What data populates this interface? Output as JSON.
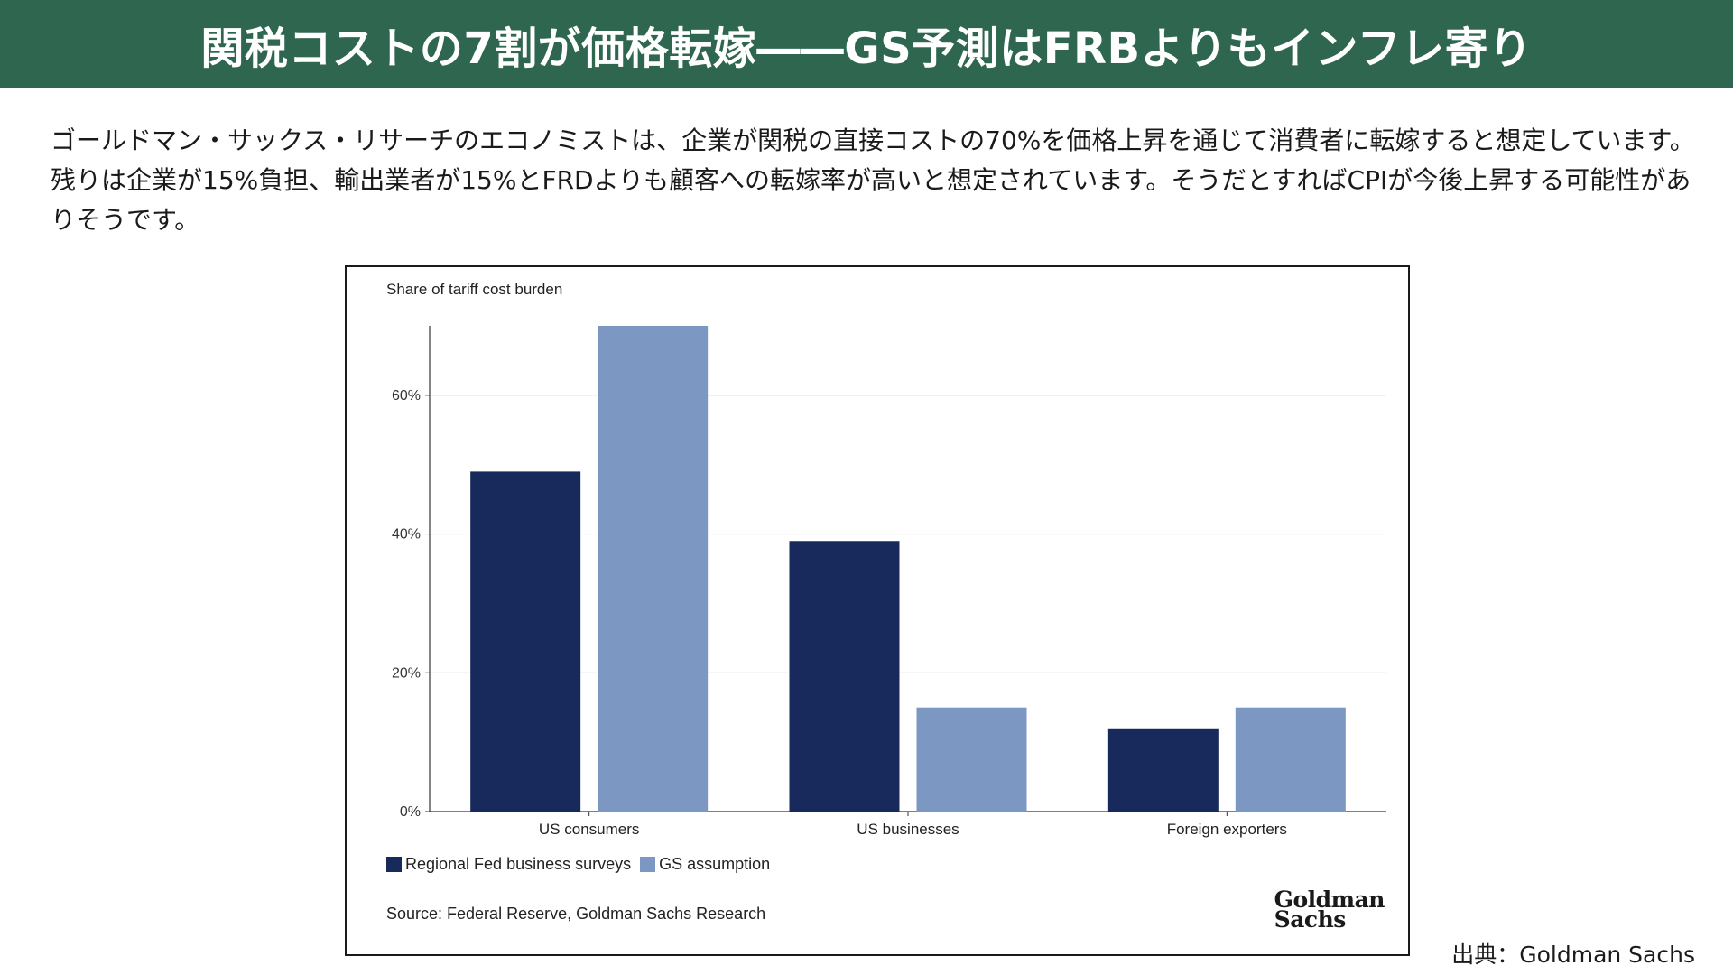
{
  "header": {
    "title": "関税コストの7割が価格転嫁――GS予測はFRBよりもインフレ寄り"
  },
  "body_text": "ゴールドマン・サックス・リサーチのエコノミストは、企業が関税の直接コストの70%を価格上昇を通じて消費者に転嫁すると想定しています。残りは企業が15%負担、輸出業者が15%とFRDよりも顧客への転嫁率が高いと想定されています。そうだとすればCPIが今後上昇する可能性がありそうです。",
  "chart_data": {
    "type": "bar",
    "title": "Share of tariff cost burden",
    "categories": [
      "US consumers",
      "US businesses",
      "Foreign exporters"
    ],
    "series": [
      {
        "name": "Regional Fed business surveys",
        "values": [
          49,
          39,
          12
        ],
        "color": "#172a5b"
      },
      {
        "name": "GS assumption",
        "values": [
          70,
          15,
          15
        ],
        "color": "#7b97c2"
      }
    ],
    "yticks": [
      0,
      20,
      40,
      60
    ],
    "ytick_labels": [
      "0%",
      "20%",
      "40%",
      "60%"
    ],
    "ylim": [
      0,
      70
    ],
    "grid": true,
    "legend_position": "bottom-left",
    "source": "Source: Federal Reserve, Goldman Sachs Research",
    "logo_lines": [
      "Goldman",
      "Sachs"
    ]
  },
  "credit": "出典：Goldman Sachs"
}
